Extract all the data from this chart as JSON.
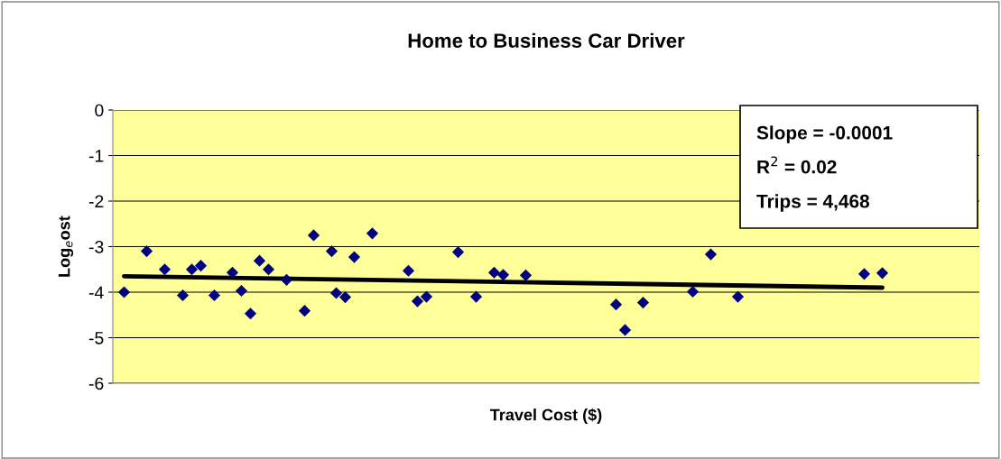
{
  "chart_data": {
    "type": "scatter",
    "title": "Home to Business Car Driver",
    "xlabel": "Travel Cost ($)",
    "ylabel": "Log$_{e}$ost",
    "categories": [
      null,
      null,
      null,
      null,
      null,
      null,
      null,
      null,
      null,
      null,
      null,
      null,
      null,
      null,
      null,
      null,
      null,
      null,
      null,
      null,
      null,
      null,
      null,
      null,
      null,
      null,
      null,
      null,
      null,
      null,
      null,
      null,
      null,
      null,
      null,
      null,
      null,
      null,
      null,
      null,
      null,
      null,
      null,
      null,
      null,
      null,
      null,
      null,
      null,
      null,
      null,
      null,
      null,
      null,
      null,
      null,
      null,
      null,
      null,
      null,
      null,
      null,
      null,
      null,
      null,
      null,
      null,
      null,
      null,
      null,
      null,
      null,
      null,
      null,
      null,
      null,
      null,
      null,
      null,
      null,
      null,
      null,
      null,
      null,
      null,
      null,
      null,
      null,
      null,
      null,
      null,
      null,
      null,
      null,
      null,
      null,
      null,
      null,
      null,
      null,
      null,
      null,
      null,
      null,
      null,
      null,
      null,
      null,
      null,
      null,
      null,
      null,
      null,
      null,
      null,
      null,
      null,
      null,
      null,
      null,
      null,
      null,
      null,
      null,
      null,
      null,
      null,
      null,
      null,
      null,
      null,
      null,
      null,
      null,
      null,
      null,
      null,
      null,
      null,
      null,
      null,
      null,
      null,
      null,
      null,
      null,
      null,
      null,
      null,
      null,
      null,
      null,
      null,
      null,
      null,
      null,
      null,
      null,
      null,
      null,
      null,
      null,
      null,
      null,
      null,
      null,
      null,
      null,
      null,
      null,
      null,
      null,
      null,
      null,
      null,
      null,
      null,
      null,
      null,
      null,
      null,
      null,
      null,
      null,
      null,
      null,
      null,
      null,
      null,
      null,
      null,
      null
    ],
    "series": [
      {
        "color": "#000080",
        "marker": "diamond",
        "values": [
          null,
          null,
          -4.0,
          null,
          null,
          null,
          null,
          -3.1,
          null,
          null,
          null,
          -3.5,
          null,
          null,
          null,
          -4.07,
          null,
          -3.5,
          null,
          -3.42,
          null,
          null,
          -4.07,
          null,
          null,
          null,
          -3.57,
          null,
          -3.97,
          null,
          -4.47,
          null,
          -3.31,
          null,
          -3.5,
          null,
          null,
          null,
          -3.73,
          null,
          null,
          null,
          -4.41,
          null,
          -2.75,
          null,
          null,
          null,
          -3.1,
          -4.02,
          null,
          -4.11,
          null,
          -3.23,
          null,
          null,
          null,
          -2.71,
          null,
          null,
          null,
          null,
          null,
          null,
          null,
          -3.53,
          null,
          -4.2,
          null,
          -4.1,
          null,
          null,
          null,
          null,
          null,
          null,
          -3.12,
          null,
          null,
          null,
          -4.1,
          null,
          null,
          null,
          -3.57,
          null,
          -3.62,
          null,
          null,
          null,
          null,
          -3.63,
          null,
          null,
          null,
          null,
          null,
          null,
          null,
          null,
          null,
          null,
          null,
          null,
          null,
          null,
          null,
          null,
          null,
          null,
          null,
          -4.27,
          null,
          -4.83,
          null,
          null,
          null,
          -4.23,
          null,
          null,
          null,
          null,
          null,
          null,
          null,
          null,
          null,
          null,
          -3.99,
          null,
          null,
          null,
          -3.17,
          null,
          null,
          null,
          null,
          null,
          -4.1,
          null,
          null,
          null,
          null,
          null,
          null,
          null,
          null,
          null,
          null,
          null,
          null,
          null,
          null,
          null,
          null,
          null,
          null,
          null,
          null,
          null,
          null,
          null,
          null,
          null,
          null,
          null,
          -3.6,
          null,
          null,
          null,
          -3.58,
          null,
          null,
          null,
          null,
          null,
          null,
          null,
          null,
          null,
          null,
          null,
          null,
          null,
          null,
          null,
          null,
          null,
          null,
          null,
          null,
          null
        ]
      },
      {
        "type": "line",
        "color": "#000000",
        "marker": "none",
        "line_style": "solid",
        "values": [
          null,
          null,
          -3.65,
          null,
          null,
          null,
          null,
          null,
          null,
          null,
          null,
          null,
          null,
          null,
          null,
          null,
          null,
          null,
          null,
          null,
          null,
          null,
          null,
          null,
          null,
          null,
          null,
          null,
          null,
          null,
          null,
          null,
          null,
          null,
          null,
          null,
          null,
          null,
          null,
          null,
          null,
          null,
          null,
          null,
          null,
          null,
          null,
          null,
          null,
          null,
          null,
          null,
          null,
          null,
          null,
          null,
          null,
          null,
          null,
          null,
          null,
          null,
          null,
          null,
          null,
          null,
          null,
          null,
          null,
          null,
          null,
          null,
          null,
          null,
          null,
          null,
          null,
          null,
          null,
          null,
          null,
          null,
          null,
          null,
          null,
          null,
          null,
          null,
          null,
          null,
          null,
          null,
          null,
          null,
          null,
          null,
          null,
          null,
          null,
          null,
          null,
          null,
          null,
          null,
          null,
          null,
          null,
          null,
          null,
          null,
          null,
          null,
          null,
          null,
          null,
          null,
          null,
          null,
          null,
          null,
          null,
          null,
          null,
          null,
          null,
          null,
          null,
          null,
          null,
          null,
          null,
          null,
          null,
          null,
          null,
          null,
          null,
          null,
          null,
          null,
          null,
          null,
          null,
          null,
          null,
          null,
          null,
          null,
          null,
          null,
          null,
          null,
          null,
          null,
          null,
          null,
          null,
          null,
          null,
          null,
          null,
          null,
          null,
          null,
          null,
          null,
          null,
          null,
          null,
          null,
          -3.9,
          null,
          null,
          null,
          null,
          null,
          null,
          null,
          null,
          null,
          null,
          null,
          null,
          null,
          null,
          null,
          null,
          null,
          null,
          null,
          null,
          null
        ]
      }
    ],
    "ylim": [
      -6,
      0
    ],
    "yticks": [
      -6,
      -5,
      -4,
      -3,
      -2,
      -1,
      0
    ],
    "grid": "y",
    "tick_labels": "y",
    "annotations": [
      "Slope = -0.0001",
      "R$^{2}$ = 0.02",
      "Trips = 4,468"
    ]
  }
}
